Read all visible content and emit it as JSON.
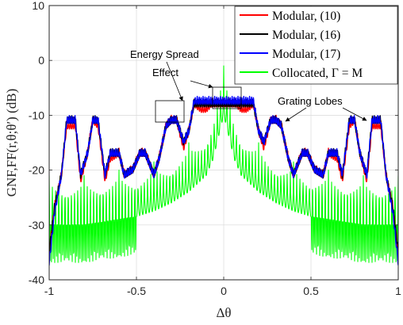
{
  "chart_data": {
    "type": "line",
    "title": "",
    "xlabel": "Δθ",
    "ylabel": "GNF,FF(r,θ;θ′) (dB)",
    "xlim": [
      -1,
      1
    ],
    "ylim": [
      -40,
      10
    ],
    "xticks": [
      -1,
      -0.5,
      0,
      0.5,
      1
    ],
    "xtick_labels": [
      "-1",
      "-0.5",
      "0",
      "0.5",
      "1"
    ],
    "yticks": [
      -40,
      -30,
      -20,
      -10,
      0,
      10
    ],
    "ytick_labels": [
      "-40",
      "-30",
      "-20",
      "-10",
      "0",
      "10"
    ],
    "grid": true,
    "legend_position": "top-right",
    "series": [
      {
        "name": "Modular, (10)",
        "color": "#ff0000",
        "envelope_x": [
          -1,
          -0.97,
          -0.93,
          -0.9,
          -0.85,
          -0.82,
          -0.78,
          -0.75,
          -0.72,
          -0.68,
          -0.65,
          -0.6,
          -0.57,
          -0.52,
          -0.48,
          -0.45,
          -0.4,
          -0.37,
          -0.33,
          -0.3,
          -0.27,
          -0.23,
          -0.2,
          -0.17,
          -0.13,
          -0.1,
          -0.07,
          -0.03,
          0,
          0.03,
          0.07,
          0.1,
          0.13,
          0.17,
          0.2,
          0.23,
          0.27,
          0.3,
          0.33,
          0.37,
          0.4,
          0.45,
          0.48,
          0.52,
          0.57,
          0.6,
          0.65,
          0.68,
          0.72,
          0.75,
          0.78,
          0.82,
          0.85,
          0.9,
          0.93,
          0.97,
          1
        ],
        "envelope_y": [
          -34,
          -26,
          -20,
          -11,
          -11,
          -21,
          -16,
          -10,
          -11,
          -21,
          -17,
          -16,
          -20,
          -19,
          -16,
          -16,
          -20,
          -17,
          -11,
          -10,
          -10,
          -15,
          -12,
          -7,
          -8,
          -8,
          -7,
          -7,
          -7,
          -7,
          -7,
          -8,
          -8,
          -7,
          -12,
          -15,
          -10,
          -10,
          -11,
          -17,
          -20,
          -16,
          -16,
          -19,
          -20,
          -16,
          -17,
          -21,
          -11,
          -10,
          -16,
          -21,
          -11,
          -11,
          -20,
          -26,
          -34
        ]
      },
      {
        "name": "Modular, (16)",
        "color": "#000000",
        "envelope_x": [
          -1,
          -0.97,
          -0.93,
          -0.9,
          -0.85,
          -0.82,
          -0.78,
          -0.75,
          -0.72,
          -0.68,
          -0.65,
          -0.6,
          -0.57,
          -0.52,
          -0.48,
          -0.45,
          -0.4,
          -0.37,
          -0.33,
          -0.3,
          -0.27,
          -0.23,
          -0.2,
          -0.17,
          -0.13,
          -0.1,
          -0.07,
          -0.03,
          0,
          0.03,
          0.07,
          0.1,
          0.13,
          0.17,
          0.2,
          0.23,
          0.27,
          0.3,
          0.33,
          0.37,
          0.4,
          0.45,
          0.48,
          0.52,
          0.57,
          0.6,
          0.65,
          0.68,
          0.72,
          0.75,
          0.78,
          0.82,
          0.85,
          0.9,
          0.93,
          0.97,
          1
        ],
        "envelope_y": [
          -34,
          -26,
          -20,
          -10,
          -10,
          -20,
          -16,
          -10,
          -10,
          -20,
          -16,
          -16,
          -20,
          -19,
          -16,
          -16,
          -20,
          -17,
          -11,
          -10,
          -10,
          -14,
          -12,
          -7,
          -7,
          -7,
          -7,
          -7,
          -7,
          -7,
          -7,
          -7,
          -7,
          -7,
          -12,
          -14,
          -10,
          -10,
          -11,
          -17,
          -20,
          -16,
          -16,
          -19,
          -20,
          -16,
          -16,
          -20,
          -10,
          -10,
          -16,
          -20,
          -10,
          -10,
          -20,
          -26,
          -34
        ]
      },
      {
        "name": "Modular, (17)",
        "color": "#0000ff",
        "envelope_x": [
          -1,
          -0.97,
          -0.93,
          -0.9,
          -0.85,
          -0.82,
          -0.78,
          -0.75,
          -0.72,
          -0.68,
          -0.65,
          -0.6,
          -0.57,
          -0.52,
          -0.48,
          -0.45,
          -0.4,
          -0.37,
          -0.33,
          -0.3,
          -0.27,
          -0.23,
          -0.2,
          -0.17,
          -0.13,
          -0.1,
          -0.07,
          -0.03,
          0,
          0.03,
          0.07,
          0.1,
          0.13,
          0.17,
          0.2,
          0.23,
          0.27,
          0.3,
          0.33,
          0.37,
          0.4,
          0.45,
          0.48,
          0.52,
          0.57,
          0.6,
          0.65,
          0.68,
          0.72,
          0.75,
          0.78,
          0.82,
          0.85,
          0.9,
          0.93,
          0.97,
          1
        ],
        "envelope_y": [
          -36,
          -27,
          -20,
          -10,
          -10,
          -20,
          -16,
          -10,
          -10,
          -20,
          -16,
          -16,
          -20,
          -19,
          -16,
          -16,
          -20,
          -17,
          -11,
          -10,
          -10,
          -14,
          -12,
          -6.5,
          -6.5,
          -6.5,
          -6.5,
          -6.5,
          -6.5,
          -6.5,
          -6.5,
          -6.5,
          -6.5,
          -6.5,
          -12,
          -14,
          -10,
          -10,
          -11,
          -17,
          -20,
          -16,
          -16,
          -19,
          -20,
          -16,
          -16,
          -20,
          -10,
          -10,
          -16,
          -20,
          -10,
          -10,
          -20,
          -27,
          -36
        ]
      },
      {
        "name": "Collocated, Γ = M",
        "color": "#00ff00",
        "peak_x": 0,
        "peak_y": -1,
        "envelope_x": [
          -1,
          -0.8,
          -0.6,
          -0.5,
          -0.4,
          -0.3,
          -0.2,
          -0.15,
          -0.1,
          -0.06,
          -0.03,
          0,
          0.03,
          0.06,
          0.1,
          0.15,
          0.2,
          0.3,
          0.4,
          0.5,
          0.6,
          0.8,
          1
        ],
        "envelope_y": [
          -21,
          -21,
          -20,
          -19.5,
          -18.5,
          -17,
          -15,
          -13.5,
          -12,
          -9,
          -5,
          -1,
          -5,
          -9,
          -12,
          -13.5,
          -15,
          -17,
          -18.5,
          -19.5,
          -20,
          -21,
          -21
        ]
      }
    ],
    "annotations": [
      "Energy Spread",
      "Effect",
      "Grating Lobes"
    ]
  }
}
